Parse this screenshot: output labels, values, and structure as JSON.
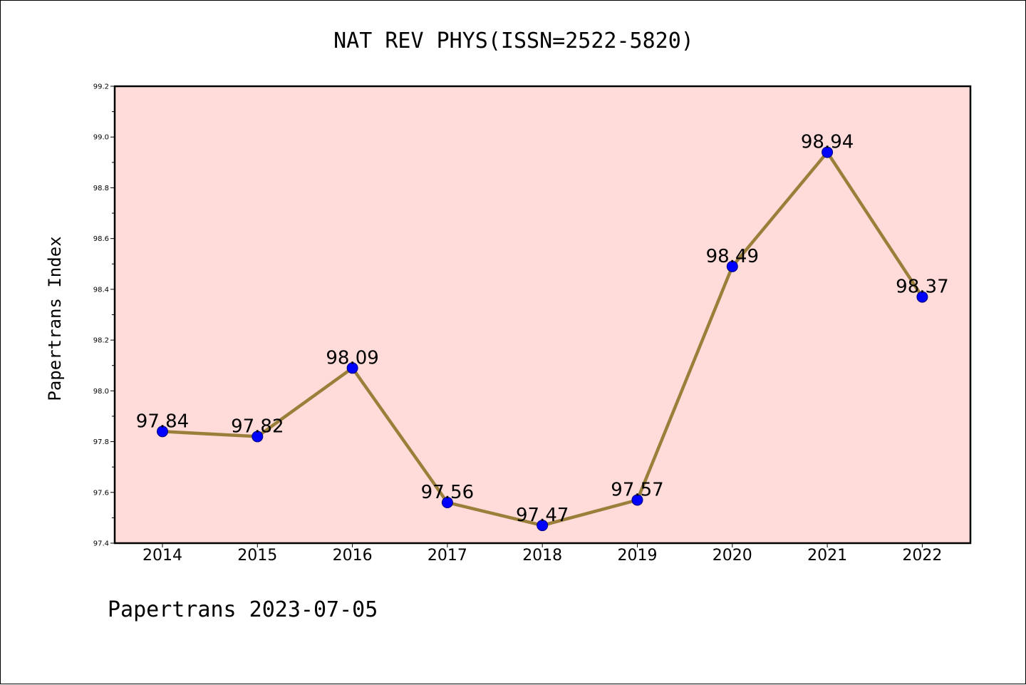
{
  "footer": "Papertrans 2023-07-05",
  "chart_data": {
    "type": "line",
    "title": "NAT REV PHYS(ISSN=2522-5820)",
    "xlabel": "",
    "ylabel": "Papertrans Index",
    "categories": [
      "2014",
      "2015",
      "2016",
      "2017",
      "2018",
      "2019",
      "2020",
      "2021",
      "2022"
    ],
    "values": [
      97.84,
      97.82,
      98.09,
      97.56,
      97.47,
      97.57,
      98.49,
      98.94,
      98.37
    ],
    "data_labels": [
      "97.84",
      "97.82",
      "98.09",
      "97.56",
      "97.47",
      "97.57",
      "98.49",
      "98.94",
      "98.37"
    ],
    "ylim": [
      97.4,
      99.2
    ],
    "yticks": [
      "97.4",
      "97.6",
      "97.8",
      "98.0",
      "98.2",
      "98.4",
      "98.6",
      "98.8",
      "99.0",
      "99.2"
    ],
    "grid": false,
    "colors": {
      "plot_background": "#FFDCDA",
      "line": "#9A7F3A",
      "marker": "#0000FF"
    }
  }
}
